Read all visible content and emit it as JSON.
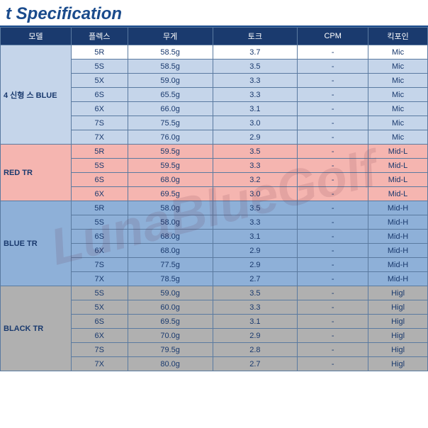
{
  "title": "t Specification",
  "watermark": "LunaBlueGolf",
  "columns": [
    "모델",
    "플렉스",
    "무게",
    "토크",
    "CPM",
    "킥포인"
  ],
  "sections": [
    {
      "css": "section-lblue",
      "model": "4 신형  스 BLUE",
      "rows": [
        {
          "flex": "5R",
          "wt": "58.5g",
          "tq": "3.7",
          "cpm": "-",
          "kick": "Mic",
          "css": "section-white"
        },
        {
          "flex": "5S",
          "wt": "58.5g",
          "tq": "3.5",
          "cpm": "-",
          "kick": "Mic"
        },
        {
          "flex": "5X",
          "wt": "59.0g",
          "tq": "3.3",
          "cpm": "-",
          "kick": "Mic"
        },
        {
          "flex": "6S",
          "wt": "65.5g",
          "tq": "3.3",
          "cpm": "-",
          "kick": "Mic"
        },
        {
          "flex": "6X",
          "wt": "66.0g",
          "tq": "3.1",
          "cpm": "-",
          "kick": "Mic"
        },
        {
          "flex": "7S",
          "wt": "75.5g",
          "tq": "3.0",
          "cpm": "-",
          "kick": "Mic"
        },
        {
          "flex": "7X",
          "wt": "76.0g",
          "tq": "2.9",
          "cpm": "-",
          "kick": "Mic"
        }
      ]
    },
    {
      "css": "section-pink",
      "model": " RED TR",
      "rows": [
        {
          "flex": "5R",
          "wt": "59.5g",
          "tq": "3.5",
          "cpm": "-",
          "kick": "Mid-L"
        },
        {
          "flex": "5S",
          "wt": "59.5g",
          "tq": "3.3",
          "cpm": "-",
          "kick": "Mid-L"
        },
        {
          "flex": "6S",
          "wt": "68.0g",
          "tq": "3.2",
          "cpm": "-",
          "kick": "Mid-L"
        },
        {
          "flex": "6X",
          "wt": "69.5g",
          "tq": "3.0",
          "cpm": "-",
          "kick": "Mid-L"
        }
      ]
    },
    {
      "css": "section-blue",
      "model": " BLUE TR",
      "rows": [
        {
          "flex": "5R",
          "wt": "58.0g",
          "tq": "3.5",
          "cpm": "-",
          "kick": "Mid-H"
        },
        {
          "flex": "5S",
          "wt": "58.0g",
          "tq": "3.3",
          "cpm": "-",
          "kick": "Mid-H"
        },
        {
          "flex": "6S",
          "wt": "68.0g",
          "tq": "3.1",
          "cpm": "-",
          "kick": "Mid-H"
        },
        {
          "flex": "6X",
          "wt": "68.0g",
          "tq": "2.9",
          "cpm": "-",
          "kick": "Mid-H"
        },
        {
          "flex": "7S",
          "wt": "77.5g",
          "tq": "2.9",
          "cpm": "-",
          "kick": "Mid-H"
        },
        {
          "flex": "7X",
          "wt": "78.5g",
          "tq": "2.7",
          "cpm": "-",
          "kick": "Mid-H"
        }
      ]
    },
    {
      "css": "section-gray",
      "model": " BLACK TR",
      "rows": [
        {
          "flex": "5S",
          "wt": "59.0g",
          "tq": "3.5",
          "cpm": "-",
          "kick": "Higl"
        },
        {
          "flex": "5X",
          "wt": "60.0g",
          "tq": "3.3",
          "cpm": "-",
          "kick": "Higl"
        },
        {
          "flex": "6S",
          "wt": "69.5g",
          "tq": "3.1",
          "cpm": "-",
          "kick": "Higl"
        },
        {
          "flex": "6X",
          "wt": "70.0g",
          "tq": "2.9",
          "cpm": "-",
          "kick": "Higl"
        },
        {
          "flex": "7S",
          "wt": "79.5g",
          "tq": "2.8",
          "cpm": "-",
          "kick": "Higl"
        },
        {
          "flex": "7X",
          "wt": "80.0g",
          "tq": "2.7",
          "cpm": "-",
          "kick": "Higl"
        }
      ]
    }
  ]
}
